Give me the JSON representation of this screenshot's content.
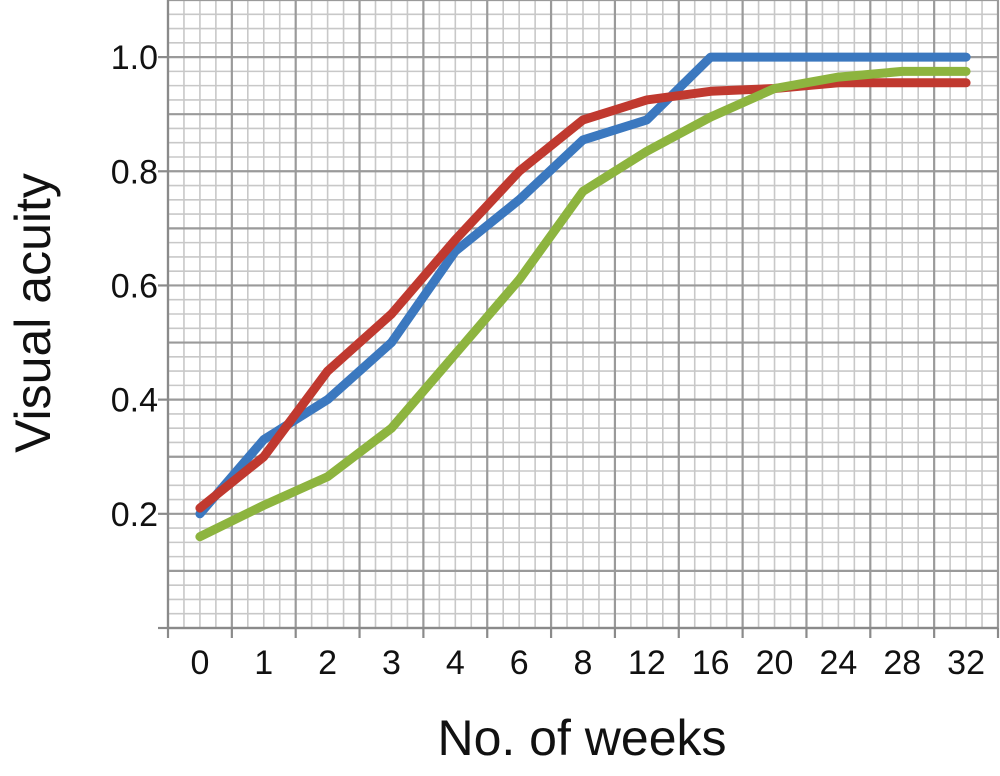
{
  "chart_data": {
    "type": "line",
    "title": "",
    "xlabel": "No. of weeks",
    "ylabel": "Visual acuity",
    "categories": [
      "0",
      "1",
      "2",
      "3",
      "4",
      "6",
      "8",
      "12",
      "16",
      "20",
      "24",
      "28",
      "32"
    ],
    "yticks": [
      "0.2",
      "0.4",
      "0.6",
      "0.8",
      "1.0"
    ],
    "ylim": [
      0.0,
      1.1
    ],
    "grid": true,
    "legend": "none",
    "series": [
      {
        "color": "#3B78BF",
        "values": [
          0.2,
          0.33,
          0.4,
          0.5,
          0.66,
          0.75,
          0.855,
          0.89,
          1.0,
          1.0,
          1.0,
          1.0,
          1.0
        ]
      },
      {
        "color": "#C0392F",
        "values": [
          0.21,
          0.3,
          0.45,
          0.55,
          0.68,
          0.8,
          0.89,
          0.925,
          0.94,
          0.945,
          0.955,
          0.955,
          0.955
        ]
      },
      {
        "color": "#8DB43F",
        "values": [
          0.16,
          0.215,
          0.265,
          0.35,
          0.48,
          0.61,
          0.765,
          0.835,
          0.895,
          0.945,
          0.965,
          0.975,
          0.975
        ]
      }
    ]
  }
}
